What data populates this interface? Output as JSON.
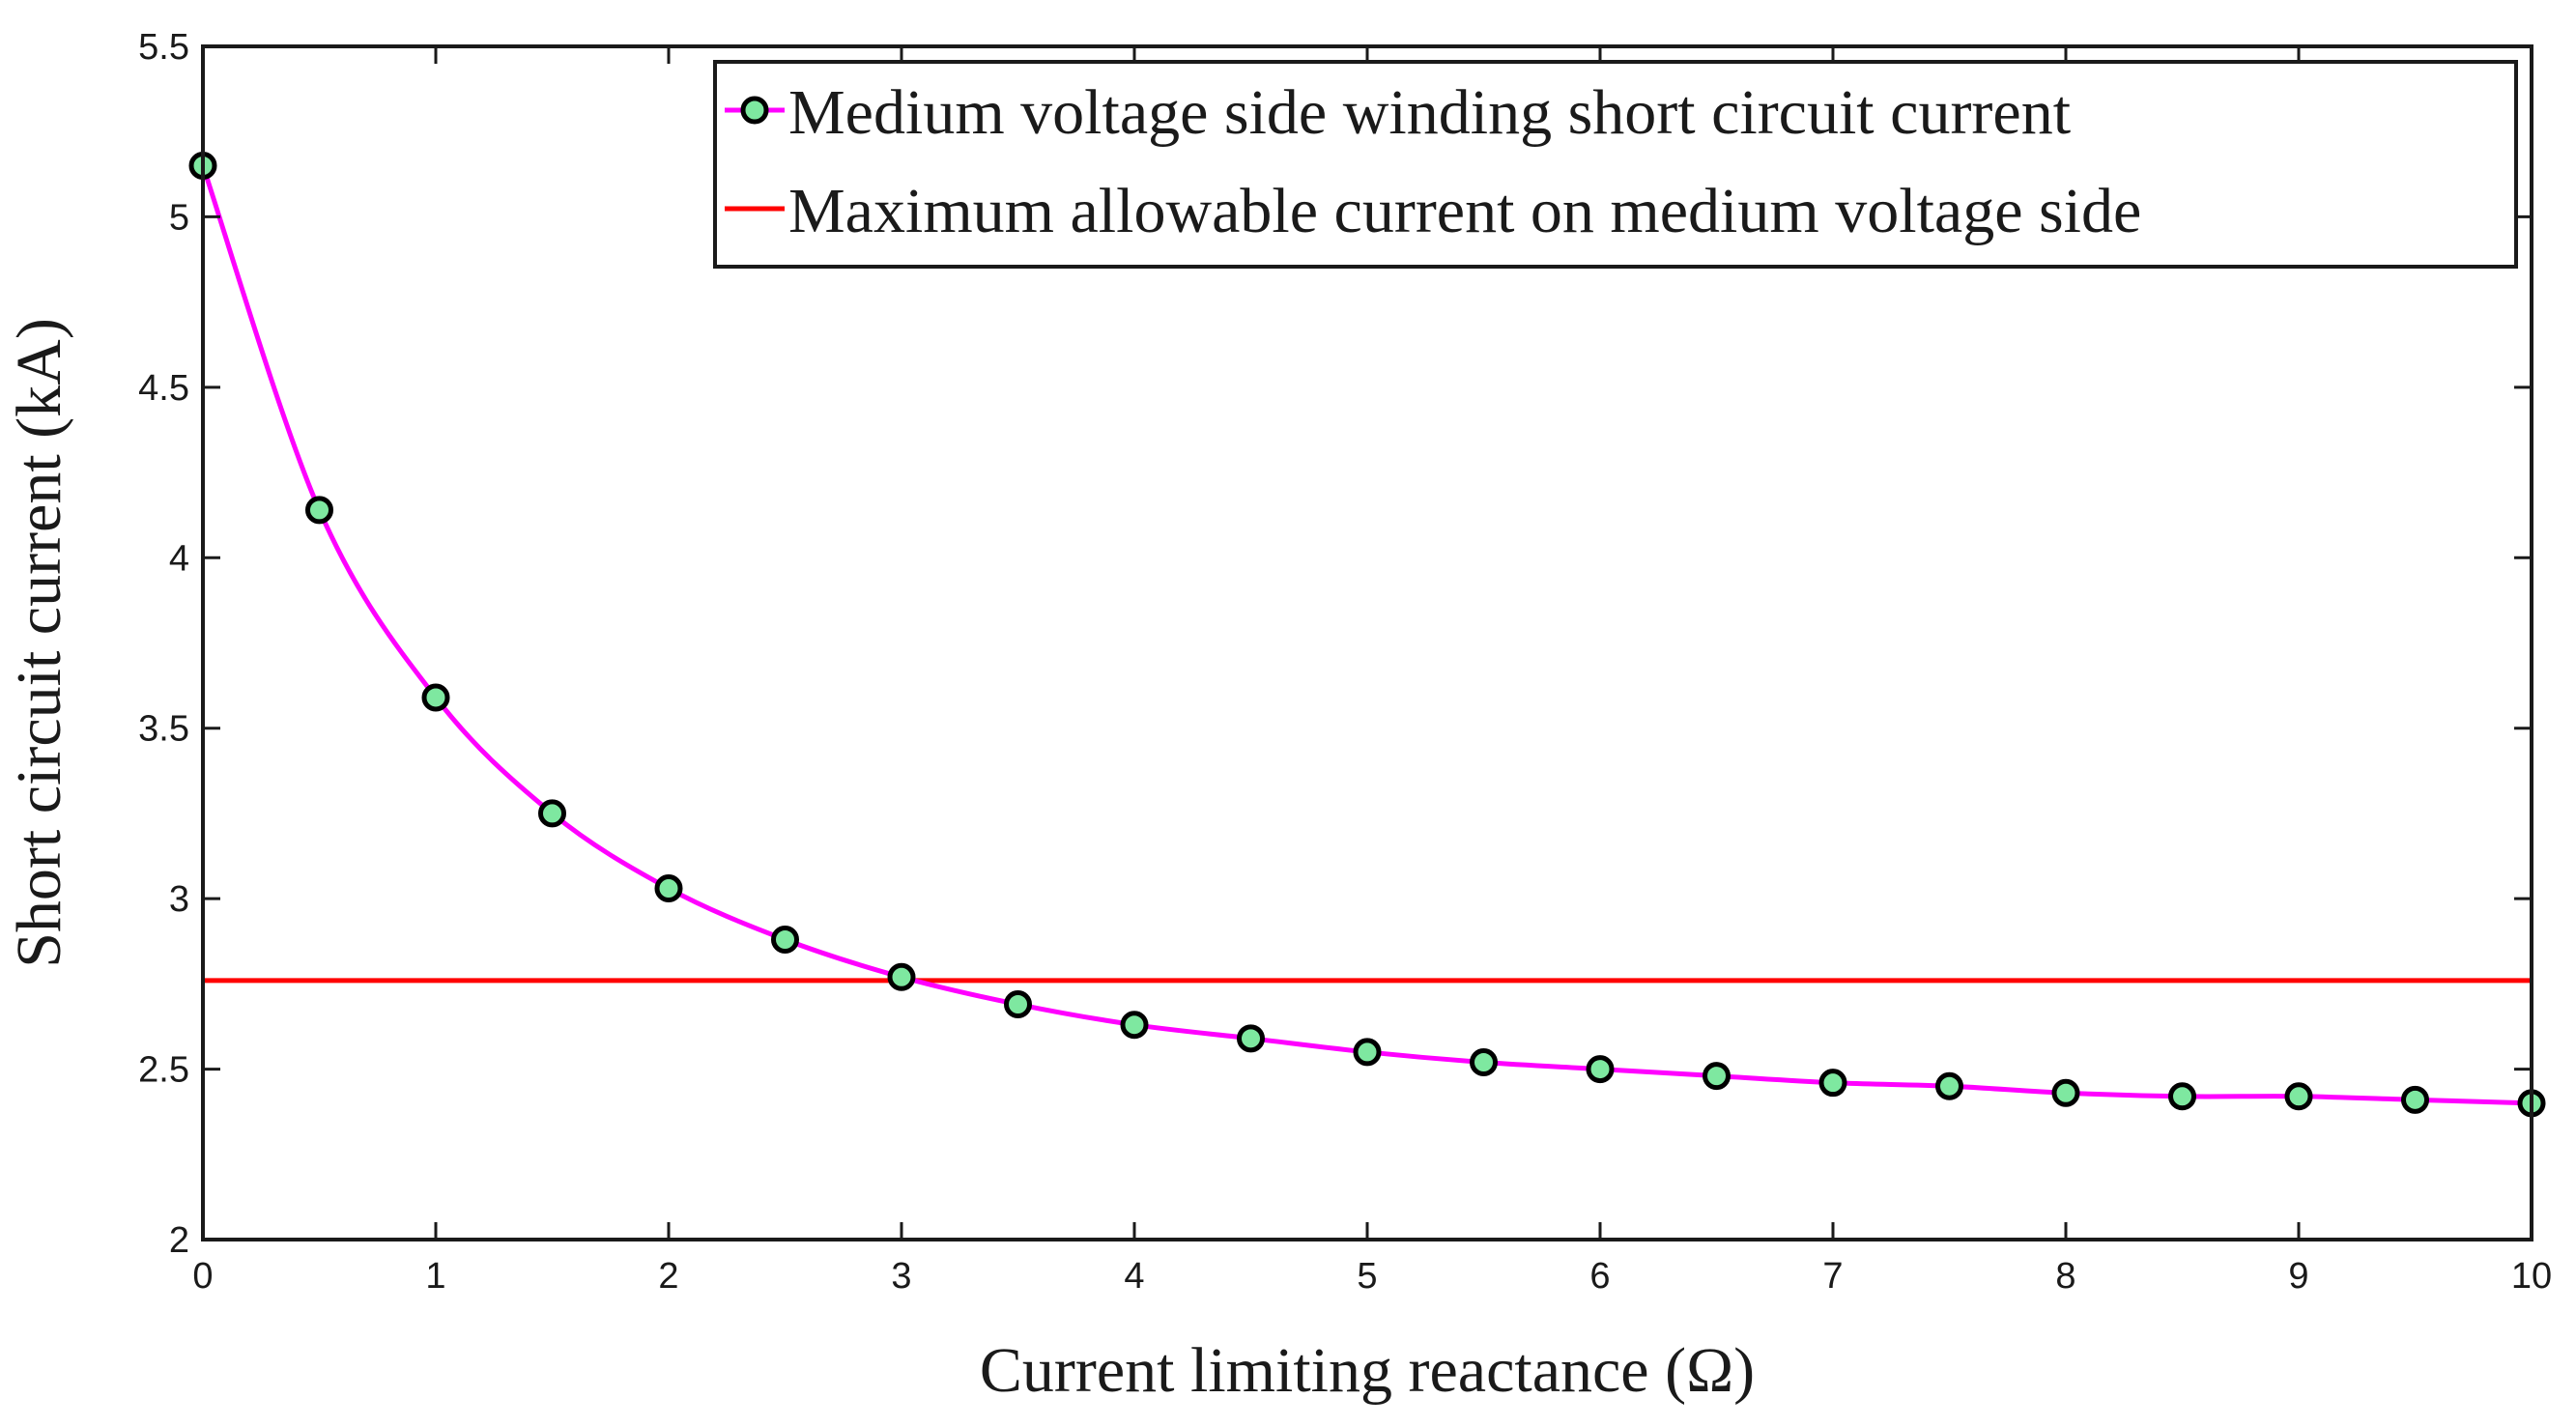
{
  "chart_data": {
    "type": "line",
    "title": "",
    "xlabel": "Current limiting reactance (Ω)",
    "ylabel": "Short circuit current (kA)",
    "xlim": [
      0,
      10
    ],
    "ylim": [
      2,
      5.5
    ],
    "xticks": [
      0,
      1,
      2,
      3,
      4,
      5,
      6,
      7,
      8,
      9,
      10
    ],
    "xtick_labels": [
      "0",
      "1",
      "2",
      "3",
      "4",
      "5",
      "6",
      "7",
      "8",
      "9",
      "10"
    ],
    "yticks": [
      2,
      2.5,
      3,
      3.5,
      4,
      4.5,
      5,
      5.5
    ],
    "ytick_labels": [
      "2",
      "2.5",
      "3",
      "3.5",
      "4",
      "4.5",
      "5",
      "5.5"
    ],
    "grid": false,
    "legend_position": "top-right",
    "series": [
      {
        "name": "Medium voltage side winding short circuit current",
        "kind": "line-with-markers",
        "line_color": "#ff00ff",
        "marker_fill": "#7ee8a0",
        "marker_edge": "#000000",
        "x": [
          0,
          0.5,
          1,
          1.5,
          2,
          2.5,
          3,
          3.5,
          4,
          4.5,
          5,
          5.5,
          6,
          6.5,
          7,
          7.5,
          8,
          8.5,
          9,
          9.5,
          10
        ],
        "values": [
          5.15,
          4.14,
          3.59,
          3.25,
          3.03,
          2.88,
          2.77,
          2.69,
          2.63,
          2.59,
          2.55,
          2.52,
          2.5,
          2.48,
          2.46,
          2.45,
          2.43,
          2.42,
          2.42,
          2.41,
          2.4
        ]
      },
      {
        "name": "Maximum allowable current on medium voltage side",
        "kind": "horizontal-line",
        "line_color": "#ff0000",
        "value": 2.76
      }
    ]
  }
}
